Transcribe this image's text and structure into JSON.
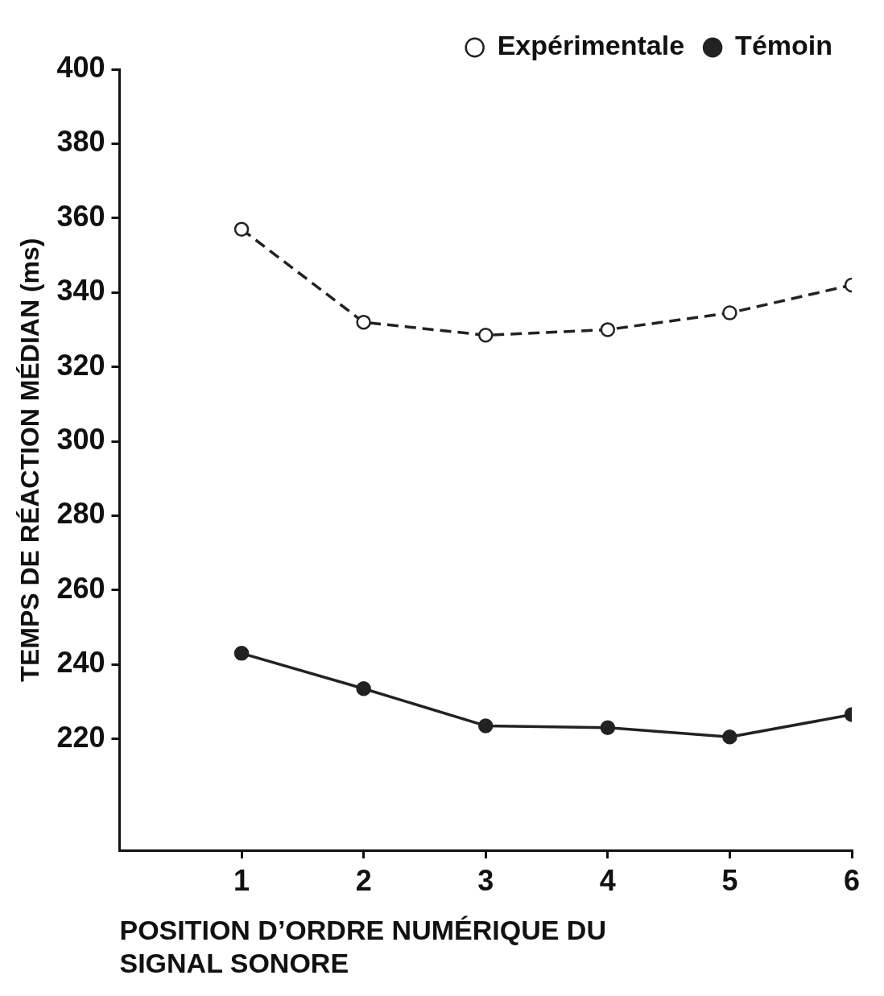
{
  "chart_data": {
    "type": "line",
    "ylabel": "TEMPS DE RÉACTION MÉDIAN (ms)",
    "xlabel": "POSITION D’ORDRE NUMÉRIQUE DU SIGNAL SONORE",
    "x": [
      1,
      2,
      3,
      4,
      5,
      6
    ],
    "series": [
      {
        "name": "Expérimentale",
        "color": "#222222",
        "line_style": "dashed",
        "values": [
          357,
          332,
          328.5,
          330,
          334.5,
          342
        ]
      },
      {
        "name": "Témoin",
        "color": "#222222",
        "line_style": "solid",
        "values": [
          243,
          233.5,
          223.5,
          223,
          220.5,
          226.5
        ]
      }
    ],
    "xlim": [
      0,
      6
    ],
    "xticks": [
      1,
      2,
      3,
      4,
      5,
      6
    ],
    "ylim": [
      190,
      400
    ],
    "yticks": [
      220,
      240,
      260,
      280,
      300,
      320,
      340,
      360,
      380,
      400
    ],
    "grid": false,
    "legend": "top right",
    "marker": "circle"
  }
}
